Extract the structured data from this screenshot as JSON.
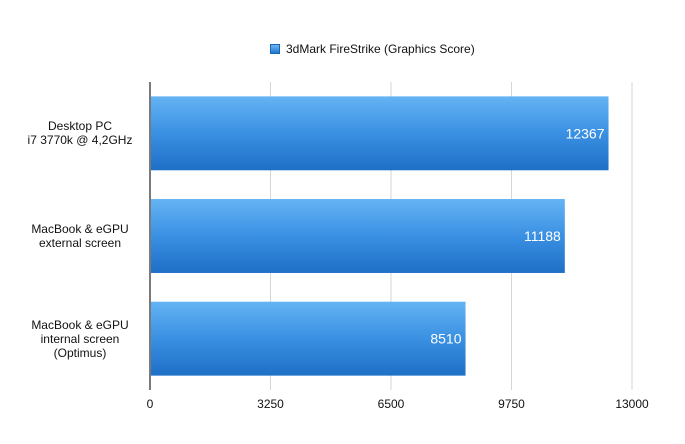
{
  "chart_data": {
    "type": "bar",
    "orientation": "horizontal",
    "categories": [
      [
        "Desktop PC",
        "i7 3770k @ 4,2GHz"
      ],
      [
        "MacBook & eGPU",
        "external screen"
      ],
      [
        "MacBook & eGPU",
        "internal screen",
        "(Optimus)"
      ]
    ],
    "series": [
      {
        "name": "3dMark FireStrike (Graphics Score)",
        "values": [
          12367,
          11188,
          8510
        ],
        "color": "#2f86dc"
      }
    ],
    "xlim": [
      0,
      13000
    ],
    "xticks": [
      0,
      3250,
      6500,
      9750,
      13000
    ],
    "grid": true,
    "legend_position": "top-center",
    "data_labels": [
      "12367",
      "11188",
      "8510"
    ]
  }
}
